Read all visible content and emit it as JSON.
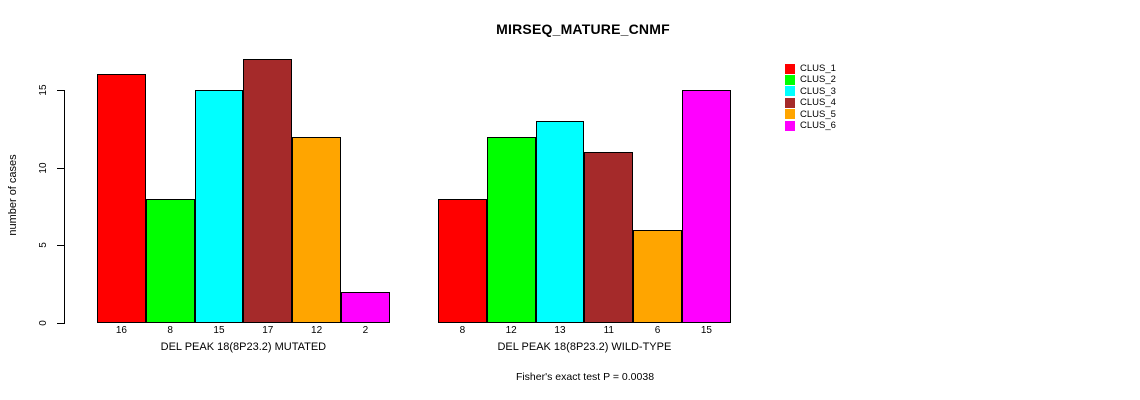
{
  "title": "MIRSEQ_MATURE_CNMF",
  "footnote": "Fisher's exact test P = 0.0038",
  "chart_data": {
    "type": "bar",
    "title": "MIRSEQ_MATURE_CNMF",
    "ylabel": "number of cases",
    "xlabel": "",
    "ylim": [
      0,
      15
    ],
    "yticks": [
      0,
      5,
      10,
      15
    ],
    "grid": false,
    "legend_position": "right",
    "legend_entries": [
      "CLUS_1",
      "CLUS_2",
      "CLUS_3",
      "CLUS_4",
      "CLUS_5",
      "CLUS_6"
    ],
    "colors": [
      "#FF0000",
      "#00FF00",
      "#00FFFF",
      "#A52A2A",
      "#FFA500",
      "#FF00FF"
    ],
    "groups": [
      {
        "label": "DEL PEAK 18(8P23.2) MUTATED",
        "values": [
          16,
          8,
          15,
          17,
          12,
          2
        ]
      },
      {
        "label": "DEL PEAK 18(8P23.2) WILD-TYPE",
        "values": [
          8,
          12,
          13,
          11,
          6,
          15
        ]
      }
    ],
    "annotation": "Fisher's exact test P = 0.0038"
  }
}
